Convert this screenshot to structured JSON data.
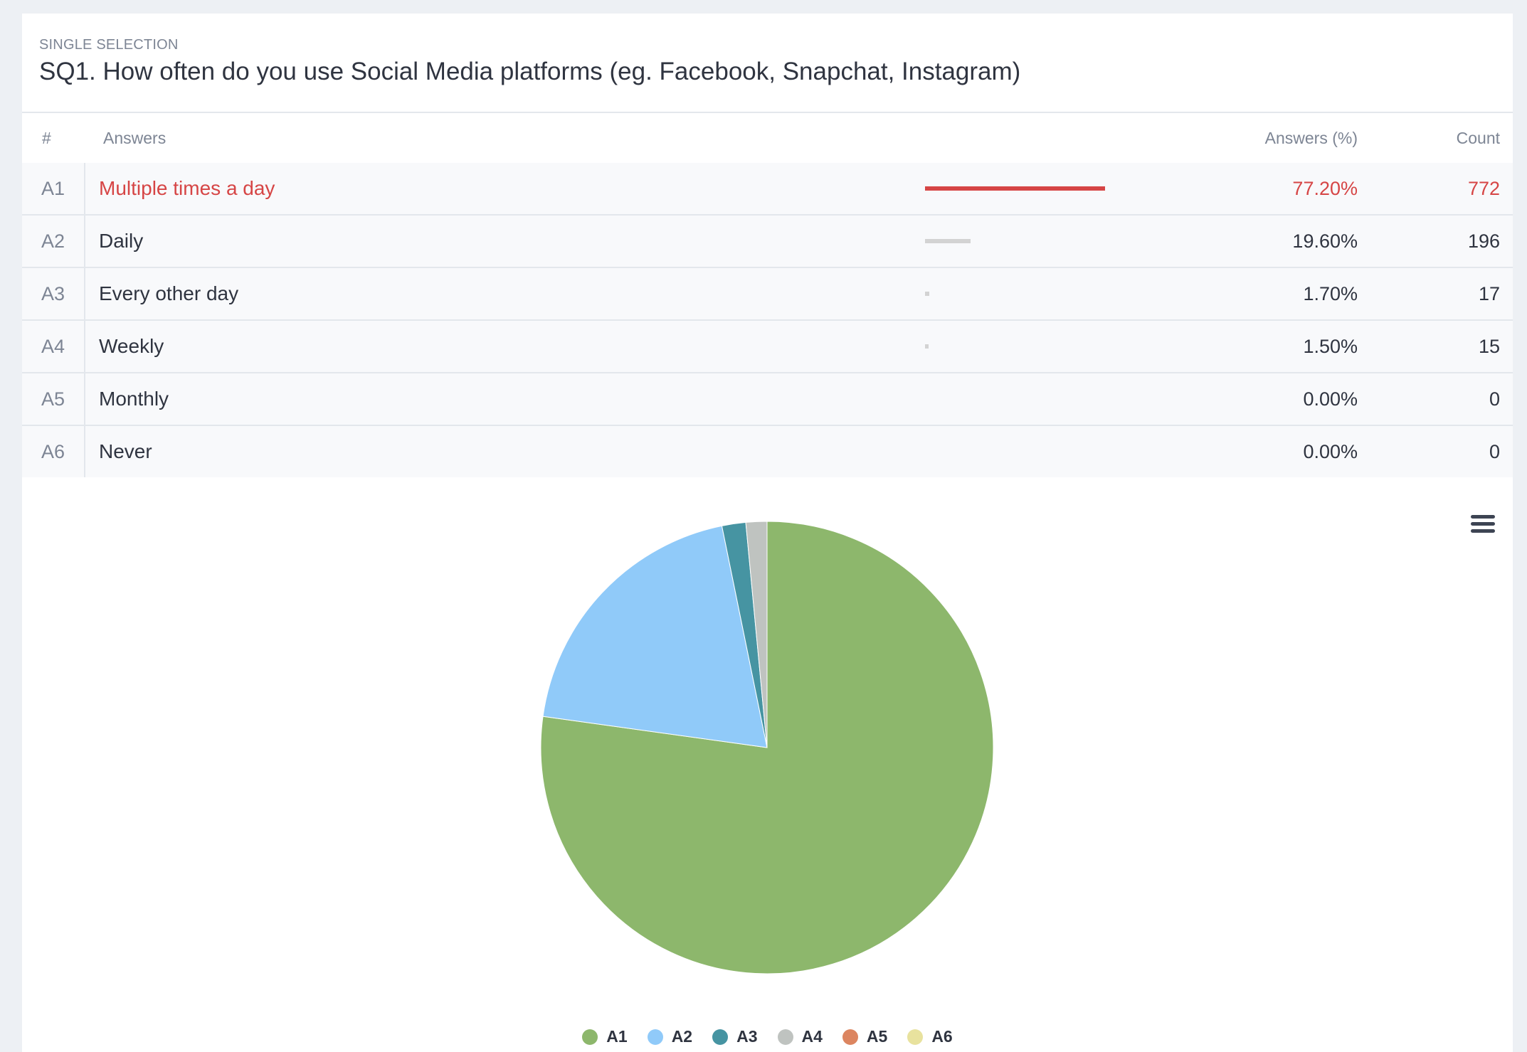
{
  "question": {
    "type": "SINGLE SELECTION",
    "title": "SQ1. How often do you use Social Media platforms (eg. Facebook, Snapchat, Instagram)"
  },
  "table": {
    "headers": {
      "num": "#",
      "answers": "Answers",
      "pct": "Answers (%)",
      "count": "Count"
    },
    "rows": [
      {
        "code": "A1",
        "label": "Multiple times a day",
        "pct": "77.20%",
        "count": "772",
        "value": 77.2,
        "highlight": true
      },
      {
        "code": "A2",
        "label": "Daily",
        "pct": "19.60%",
        "count": "196",
        "value": 19.6
      },
      {
        "code": "A3",
        "label": "Every other day",
        "pct": "1.70%",
        "count": "17",
        "value": 1.7
      },
      {
        "code": "A4",
        "label": "Weekly",
        "pct": "1.50%",
        "count": "15",
        "value": 1.5
      },
      {
        "code": "A5",
        "label": "Monthly",
        "pct": "0.00%",
        "count": "0",
        "value": 0
      },
      {
        "code": "A6",
        "label": "Never",
        "pct": "0.00%",
        "count": "0",
        "value": 0
      }
    ]
  },
  "chart_data": {
    "type": "pie",
    "categories": [
      "A1",
      "A2",
      "A3",
      "A4",
      "A5",
      "A6"
    ],
    "values": [
      772,
      196,
      17,
      15,
      0,
      0
    ],
    "colors": [
      "#8db76c",
      "#90caf9",
      "#4694a2",
      "#bfc3c0",
      "#dc8560",
      "#e8e29e"
    ],
    "legend": "bottom",
    "start": "top, clockwise"
  },
  "icons": {
    "menu": "hamburger-menu-icon"
  }
}
